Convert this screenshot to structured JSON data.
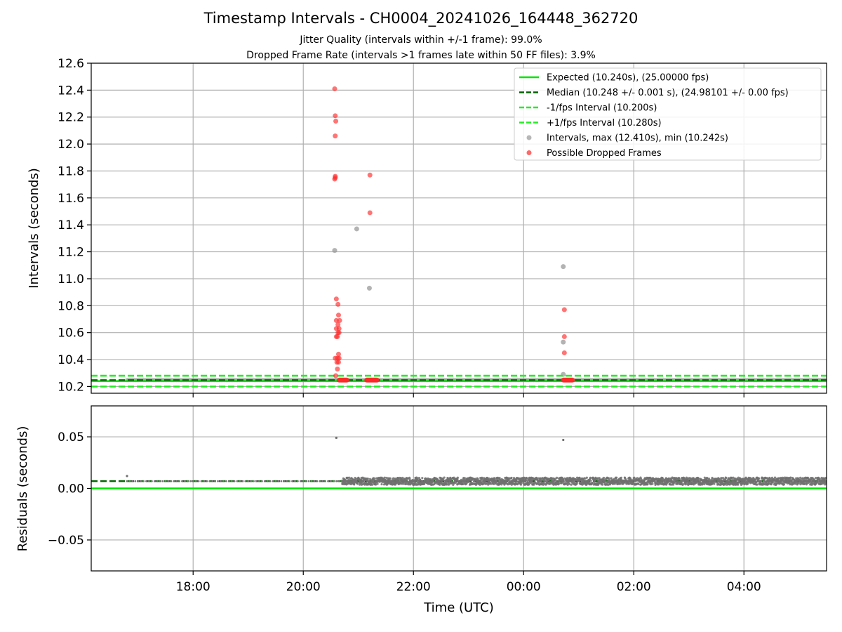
{
  "title": "Timestamp Intervals - CH0004_20241026_164448_362720",
  "subtitle1": "Jitter Quality (intervals within +/-1 frame): 99.0%",
  "subtitle2": "Dropped Frame Rate (intervals >1 frames late within 50 FF files): 3.9%",
  "colors": {
    "expected": "#00e600",
    "median": "#006400",
    "interval_band": "#22ee22",
    "intervals": "#999999",
    "dropped": "#ff2a2a",
    "residuals": "#707070",
    "grid": "#b0b0b0"
  },
  "chart_data": [
    {
      "type": "scatter",
      "panel": "top",
      "ylabel": "Intervals (seconds)",
      "ylim": [
        10.15,
        12.6
      ],
      "xlim_hours": [
        16.15,
        29.5
      ],
      "yticks": [
        10.2,
        10.4,
        10.6,
        10.8,
        11.0,
        11.2,
        11.4,
        11.6,
        11.8,
        12.0,
        12.2,
        12.4,
        12.6
      ],
      "ytick_labels": [
        "10.2",
        "10.4",
        "10.6",
        "10.8",
        "11.0",
        "11.2",
        "11.4",
        "11.6",
        "11.8",
        "12.0",
        "12.2",
        "12.4",
        "12.6"
      ],
      "xtick_hours": [
        18,
        20,
        22,
        24,
        26,
        28
      ],
      "grid": true,
      "legend_position": "upper-right",
      "lines": [
        {
          "name": "Expected (10.240s), (25.00000 fps)",
          "y": 10.24,
          "style": "solid",
          "color_key": "expected"
        },
        {
          "name": "Median (10.248 +/- 0.001 s), (24.98101 +/- 0.00 fps)",
          "y": 10.248,
          "style": "dashed",
          "color_key": "median"
        },
        {
          "name": "-1/fps Interval (10.200s)",
          "y": 10.2,
          "style": "dashed",
          "color_key": "interval_band"
        },
        {
          "name": "+1/fps Interval (10.280s)",
          "y": 10.28,
          "style": "dashed",
          "color_key": "interval_band"
        }
      ],
      "series": [
        {
          "name": "Intervals, max (12.410s), min (10.242s)",
          "marker": "dot",
          "color_key": "intervals",
          "baseline": {
            "x_start": 16.8,
            "x_end": 29.5,
            "y": 10.247
          },
          "points": [
            [
              20.57,
              11.21
            ],
            [
              20.97,
              11.37
            ],
            [
              21.2,
              10.93
            ],
            [
              24.72,
              11.09
            ],
            [
              24.72,
              10.53
            ],
            [
              24.72,
              10.29
            ]
          ]
        },
        {
          "name": "Possible Dropped Frames",
          "marker": "dot",
          "color_key": "dropped",
          "clusters": [
            {
              "x_start": 20.65,
              "x_end": 20.8,
              "y": 10.248
            },
            {
              "x_start": 21.15,
              "x_end": 21.35,
              "y": 10.248
            },
            {
              "x_start": 24.72,
              "x_end": 24.9,
              "y": 10.248
            }
          ],
          "points": [
            [
              20.57,
              12.41
            ],
            [
              20.58,
              12.21
            ],
            [
              20.59,
              12.17
            ],
            [
              20.58,
              12.06
            ],
            [
              20.58,
              11.76
            ],
            [
              20.57,
              11.74
            ],
            [
              20.58,
              11.75
            ],
            [
              21.21,
              11.77
            ],
            [
              21.21,
              11.49
            ],
            [
              20.6,
              10.85
            ],
            [
              20.63,
              10.81
            ],
            [
              20.64,
              10.73
            ],
            [
              20.6,
              10.69
            ],
            [
              20.66,
              10.69
            ],
            [
              20.63,
              10.66
            ],
            [
              20.65,
              10.63
            ],
            [
              20.6,
              10.63
            ],
            [
              20.63,
              10.6
            ],
            [
              20.65,
              10.6
            ],
            [
              20.6,
              10.57
            ],
            [
              20.62,
              10.57
            ],
            [
              20.64,
              10.44
            ],
            [
              20.58,
              10.41
            ],
            [
              20.62,
              10.41
            ],
            [
              20.65,
              10.41
            ],
            [
              20.61,
              10.38
            ],
            [
              20.64,
              10.38
            ],
            [
              20.62,
              10.33
            ],
            [
              20.59,
              10.28
            ],
            [
              24.74,
              10.77
            ],
            [
              24.74,
              10.57
            ],
            [
              24.74,
              10.45
            ]
          ]
        }
      ]
    },
    {
      "type": "scatter",
      "panel": "bottom",
      "ylabel": "Residuals (seconds)",
      "xlabel": "Time (UTC)",
      "ylim": [
        -0.08,
        0.08
      ],
      "xlim_hours": [
        16.15,
        29.5
      ],
      "yticks": [
        0.05,
        0.0,
        -0.05
      ],
      "ytick_labels": [
        "0.05",
        "0.00",
        "−0.05"
      ],
      "xtick_hours": [
        18,
        20,
        22,
        24,
        26,
        28
      ],
      "xtick_labels": [
        "18:00",
        "20:00",
        "22:00",
        "00:00",
        "02:00",
        "04:00"
      ],
      "grid": true,
      "lines": [
        {
          "y": 0.0,
          "style": "solid",
          "color_key": "expected"
        },
        {
          "y": 0.007,
          "style": "dashed",
          "color_key": "median"
        }
      ],
      "series": [
        {
          "name": "Residuals",
          "marker": "small-dot",
          "color_key": "residuals",
          "sparse_range": {
            "x_start": 16.8,
            "x_end": 20.7,
            "y": 0.007
          },
          "dense_range": {
            "x_start": 20.7,
            "x_end": 29.5,
            "y_center": 0.007,
            "y_spread": 0.0035
          },
          "points": [
            [
              16.8,
              0.012
            ],
            [
              20.6,
              0.049
            ],
            [
              24.72,
              0.047
            ]
          ]
        }
      ]
    }
  ]
}
